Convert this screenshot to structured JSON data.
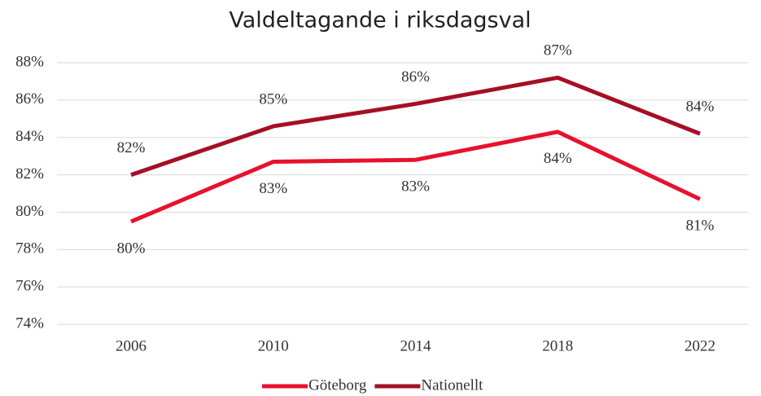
{
  "chart_data": {
    "type": "line",
    "title": "Valdeltagande i riksdagsval",
    "categories": [
      "2006",
      "2010",
      "2014",
      "2018",
      "2022"
    ],
    "series": [
      {
        "name": "Göteborg",
        "color": "#e8112d",
        "values": [
          79.5,
          82.7,
          82.8,
          84.3,
          80.7
        ],
        "value_labels": [
          "80%",
          "83%",
          "83%",
          "84%",
          "81%"
        ]
      },
      {
        "name": "Nationellt",
        "color": "#a50f25",
        "values": [
          82.0,
          84.6,
          85.8,
          87.2,
          84.2
        ],
        "value_labels": [
          "82%",
          "85%",
          "86%",
          "87%",
          "84%"
        ]
      }
    ],
    "ylim": [
      74,
      88
    ],
    "yticks": [
      {
        "value": 74,
        "label": "74%"
      },
      {
        "value": 76,
        "label": "76%"
      },
      {
        "value": 78,
        "label": "78%"
      },
      {
        "value": 80,
        "label": "80%"
      },
      {
        "value": 82,
        "label": "82%"
      },
      {
        "value": 84,
        "label": "84%"
      },
      {
        "value": 86,
        "label": "86%"
      },
      {
        "value": 88,
        "label": "88%"
      }
    ],
    "grid": true,
    "legend": "bottom"
  }
}
